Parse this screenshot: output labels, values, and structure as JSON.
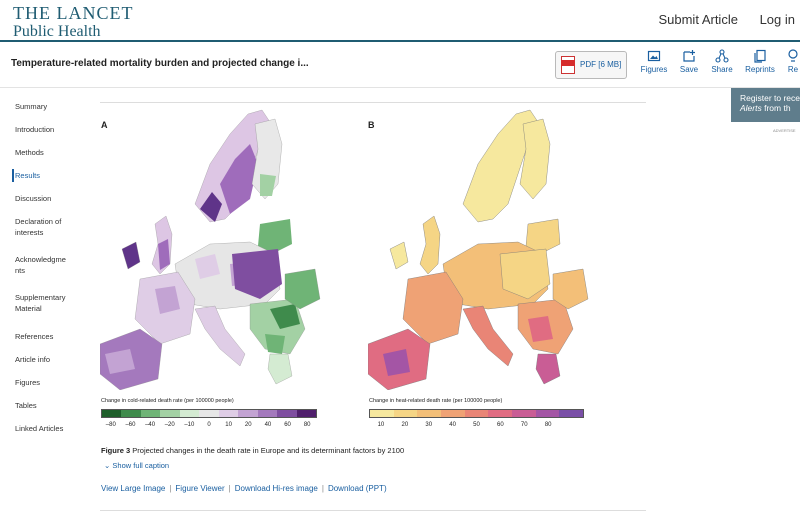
{
  "header": {
    "logo_line1": "THE LANCET",
    "logo_line2": "Public Health",
    "submit_label": "Submit Article",
    "login_label": "Log in"
  },
  "articlebar": {
    "title": "Temperature-related mortality burden and projected change i...",
    "pdf_label": "PDF [6 MB]",
    "tools": [
      {
        "label": "Figures",
        "icon": "image-icon"
      },
      {
        "label": "Save",
        "icon": "save-icon"
      },
      {
        "label": "Share",
        "icon": "share-icon"
      },
      {
        "label": "Reprints",
        "icon": "reprints-icon"
      },
      {
        "label": "Re",
        "icon": "request-icon"
      }
    ]
  },
  "sidebar": {
    "items": [
      {
        "label": "Summary"
      },
      {
        "label": "Introduction"
      },
      {
        "label": "Methods"
      },
      {
        "label": "Results",
        "active": true
      },
      {
        "label": "Discussion"
      },
      {
        "label": "Declaration of interests"
      },
      {
        "label": "Acknowledgme nts"
      },
      {
        "label": "Supplementary Material"
      },
      {
        "label": "References"
      },
      {
        "label": "Article info"
      },
      {
        "label": "Figures"
      },
      {
        "label": "Tables"
      },
      {
        "label": "Linked Articles"
      }
    ]
  },
  "figure": {
    "panel_a": "A",
    "panel_b": "B",
    "legend_a": {
      "title": "Change in cold-related death rate (per 100000 people)",
      "colors": [
        "#1e5e2a",
        "#3f8b4c",
        "#6fb476",
        "#a3d1a4",
        "#d4ebd2",
        "#e6e6e6",
        "#dfcde6",
        "#c3a3d3",
        "#a479bd",
        "#7f4ea0",
        "#501f6c"
      ],
      "ticks": [
        "–80",
        "–60",
        "–40",
        "–20",
        "–10",
        "0",
        "10",
        "20",
        "40",
        "60",
        "80"
      ]
    },
    "legend_b": {
      "title": "Change in heat-related death rate (per 100000 people)",
      "colors": [
        "#f6e89e",
        "#f5d585",
        "#f3bf78",
        "#efa275",
        "#e98576",
        "#e06c82",
        "#c95d95",
        "#a455a5",
        "#7a4fa7"
      ],
      "ticks": [
        "10",
        "20",
        "30",
        "40",
        "50",
        "60",
        "70",
        "80"
      ]
    },
    "caption_label": "Figure 3",
    "caption_text": "Projected changes in the death rate in Europe and its determinant factors by 2100",
    "show_caption": "Show full caption",
    "links": [
      "View Large Image",
      "Figure Viewer",
      "Download Hi-res image",
      "Download (PPT)"
    ]
  },
  "ad": {
    "register_line1": "Register to rece",
    "register_em": "Alerts",
    "register_line2": " from th",
    "advert": "ADVERTISE"
  }
}
